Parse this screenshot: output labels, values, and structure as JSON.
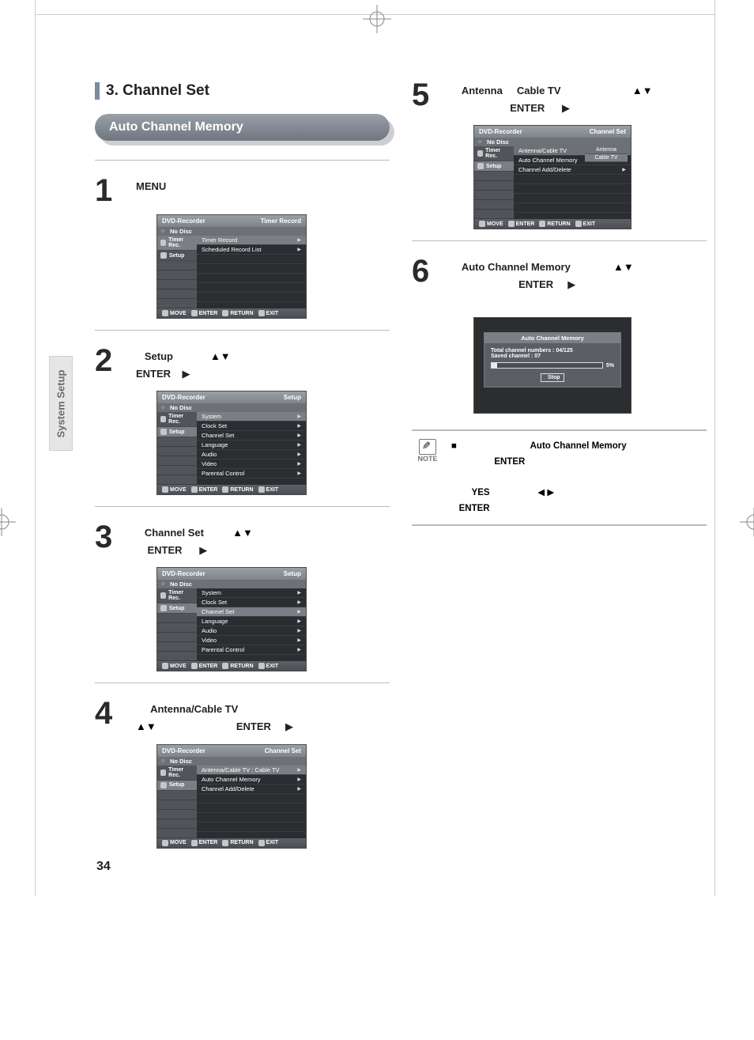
{
  "page": {
    "number": "34",
    "side_tab": "System Setup"
  },
  "section": {
    "number_title": "3. Channel Set",
    "banner": "Auto Channel Memory"
  },
  "steps": {
    "s1": {
      "num": "1",
      "text": "MENU"
    },
    "s2": {
      "num": "2",
      "label": "Setup",
      "arrows": "▲▼",
      "enter": "ENTER",
      "play": "▶"
    },
    "s3": {
      "num": "3",
      "label": "Channel Set",
      "arrows": "▲▼",
      "enter": "ENTER",
      "play": "▶"
    },
    "s4": {
      "num": "4",
      "label": "Antenna/Cable TV",
      "arrows": "▲▼",
      "enter": "ENTER",
      "play": "▶"
    },
    "s5": {
      "num": "5",
      "opt_a": "Antenna",
      "opt_b": "Cable TV",
      "arrows": "▲▼",
      "enter": "ENTER",
      "play": "▶"
    },
    "s6": {
      "num": "6",
      "label": "Auto Channel Memory",
      "arrows": "▲▼",
      "enter": "ENTER",
      "play": "▶"
    }
  },
  "osd": {
    "title": "DVD-Recorder",
    "no_disc": "No Disc",
    "side": {
      "timer": "Timer Rec.",
      "setup": "Setup"
    },
    "modes": {
      "timer_record": "Timer Record",
      "setup": "Setup",
      "channel_set": "Channel Set"
    },
    "timer_items": {
      "timer_record": "Timer Record",
      "scheduled": "Scheduled Record List"
    },
    "setup_items": {
      "system": "System",
      "clock": "Clock Set",
      "channel": "Channel Set",
      "language": "Language",
      "audio": "Audio",
      "video": "Video",
      "parental": "Parental Control"
    },
    "channel_items": {
      "ant": "Antenna/Cable TV  :  Cable TV",
      "ant_short": "Antenna/Cable TV",
      "auto": "Auto Channel Memory",
      "add": "Channel Add/Delete"
    },
    "options": {
      "antenna": "Antenna",
      "cable": "Cable TV"
    },
    "foot": {
      "move": "MOVE",
      "enter": "ENTER",
      "return": "RETURN",
      "exit": "EXIT"
    }
  },
  "progress_popup": {
    "title": "Auto Channel Memory",
    "line1": "Total channel numbers  :  04/125",
    "line2": "Saved channel  :  07",
    "pct": "5%",
    "fill_pct": 5,
    "stop": "Stop"
  },
  "note": {
    "label": "NOTE",
    "bullet": "■",
    "acm": "Auto Channel Memory",
    "enter": "ENTER",
    "yes": "YES",
    "lr": "◀ ▶"
  },
  "colors": {
    "banner_start": "#9aa0a8",
    "banner_end": "#6f7680",
    "osd_header_start": "#9aa0a6",
    "osd_header_end": "#7d838a",
    "osd_body": "#2b2d31",
    "osd_side": "#515459",
    "highlight": "#7b7f85",
    "foot_start": "#5e6167",
    "foot_end": "#4b4e54",
    "text": "#222222",
    "side_tab_bg": "#e6e6e6"
  }
}
